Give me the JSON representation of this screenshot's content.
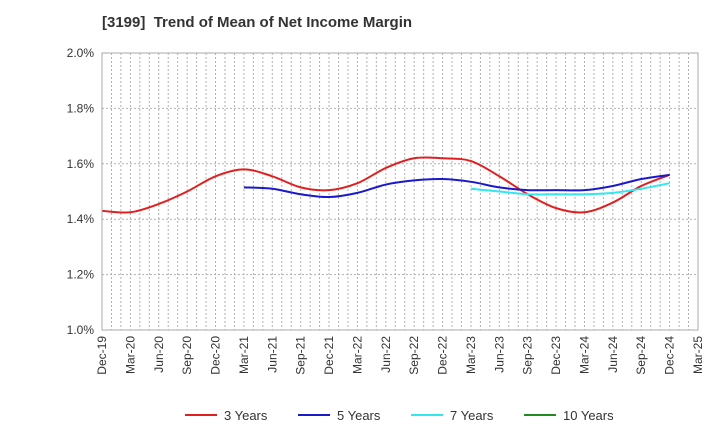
{
  "chart_data": {
    "type": "line",
    "title": "[3199]  Trend of Mean of Net Income Margin",
    "xlabel": "",
    "ylabel": "",
    "ylim": [
      1.0,
      2.0
    ],
    "yticks": [
      "1.0%",
      "1.2%",
      "1.4%",
      "1.6%",
      "1.8%",
      "2.0%"
    ],
    "ytick_values": [
      1.0,
      1.2,
      1.4,
      1.6,
      1.8,
      2.0
    ],
    "categories": [
      "Dec-19",
      "Mar-20",
      "Jun-20",
      "Sep-20",
      "Dec-20",
      "Mar-21",
      "Jun-21",
      "Sep-21",
      "Dec-21",
      "Mar-22",
      "Jun-22",
      "Sep-22",
      "Dec-22",
      "Mar-23",
      "Jun-23",
      "Sep-23",
      "Dec-23",
      "Mar-24",
      "Jun-24",
      "Sep-24",
      "Dec-24",
      "Mar-25"
    ],
    "grid": true,
    "legend_position": "bottom",
    "series": [
      {
        "name": "3 Years",
        "color": "#e02020",
        "values": [
          1.43,
          1.425,
          1.455,
          1.5,
          1.555,
          1.58,
          1.555,
          1.515,
          1.505,
          1.53,
          1.585,
          1.62,
          1.62,
          1.61,
          1.555,
          1.49,
          1.44,
          1.425,
          1.46,
          1.52,
          1.56,
          null
        ]
      },
      {
        "name": "5 Years",
        "color": "#1a1acc",
        "values": [
          null,
          null,
          null,
          null,
          null,
          1.515,
          1.51,
          1.49,
          1.48,
          1.495,
          1.525,
          1.54,
          1.545,
          1.535,
          1.515,
          1.505,
          1.505,
          1.505,
          1.52,
          1.545,
          1.56,
          null
        ]
      },
      {
        "name": "7 Years",
        "color": "#33e6f0",
        "values": [
          null,
          null,
          null,
          null,
          null,
          null,
          null,
          null,
          null,
          null,
          null,
          null,
          null,
          1.51,
          1.5,
          1.49,
          1.49,
          1.49,
          1.495,
          1.51,
          1.53,
          null
        ]
      },
      {
        "name": "10 Years",
        "color": "#228b22",
        "values": [
          null,
          null,
          null,
          null,
          null,
          null,
          null,
          null,
          null,
          null,
          null,
          null,
          null,
          null,
          null,
          null,
          null,
          null,
          null,
          null,
          null,
          null
        ]
      }
    ]
  }
}
